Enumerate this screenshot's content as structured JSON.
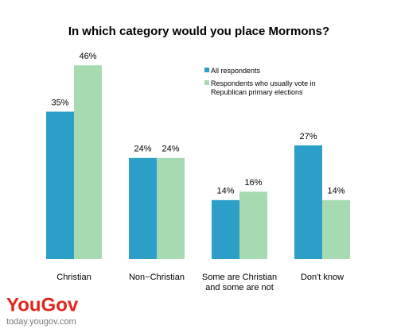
{
  "chart_data": {
    "type": "bar",
    "title": "In which category would you place Mormons?",
    "categories": [
      "Christian",
      "Non−Christian",
      "Some are Christian and some are not",
      "Don't know"
    ],
    "series": [
      {
        "name": "All respondents",
        "color": "#2c9fc8",
        "values": [
          35,
          24,
          14,
          27
        ],
        "value_labels": [
          "35%",
          "24%",
          "14%",
          "27%"
        ]
      },
      {
        "name": "Respondents who usually vote in Republican primary elections",
        "color": "#a6dbb1",
        "values": [
          46,
          24,
          16,
          14
        ],
        "value_labels": [
          "46%",
          "24%",
          "16%",
          "14%"
        ]
      }
    ],
    "legend": "upper right",
    "grid": false
  },
  "footer": {
    "brand": "YouGov",
    "url": "today.yougov.com"
  }
}
